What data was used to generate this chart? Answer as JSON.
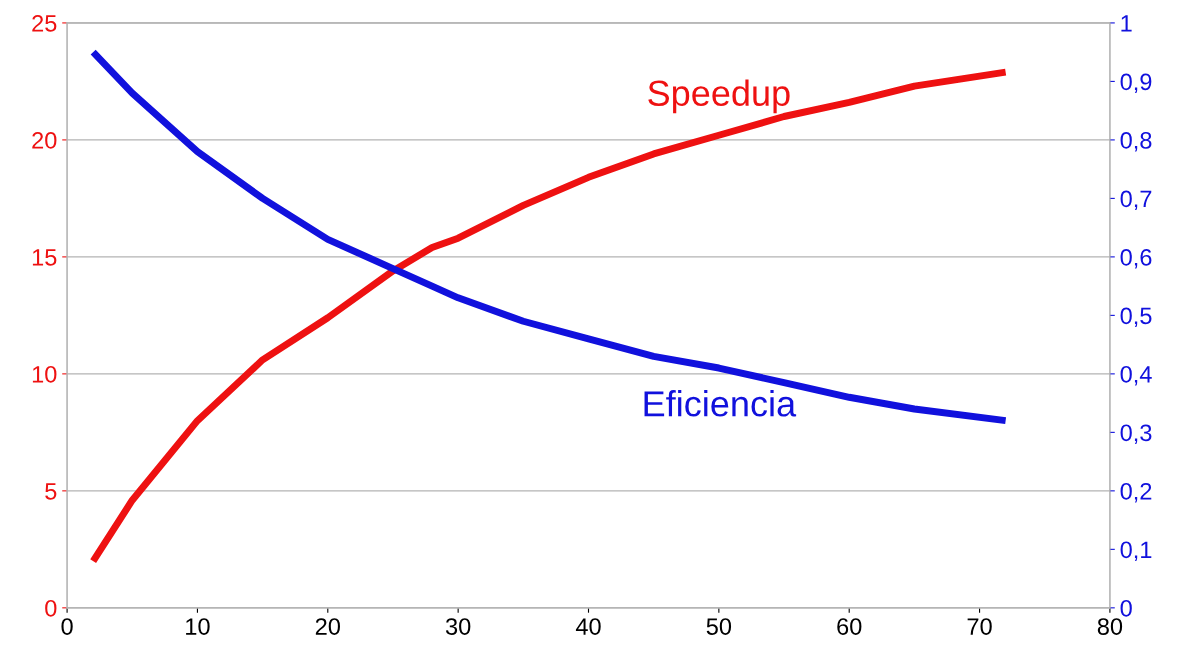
{
  "chart_data": {
    "type": "line",
    "xlim": [
      0,
      80
    ],
    "xticks": [
      0,
      10,
      20,
      30,
      40,
      50,
      60,
      70,
      80
    ],
    "ylim": [
      0,
      25
    ],
    "yticks": [
      0,
      5,
      10,
      15,
      20,
      25
    ],
    "y2lim": [
      0,
      1
    ],
    "y2ticks": [
      0,
      {
        "value": 0.1,
        "label": "0,1"
      },
      {
        "value": 0.2,
        "label": "0,2"
      },
      {
        "value": 0.3,
        "label": "0,3"
      },
      {
        "value": 0.4,
        "label": "0,4"
      },
      {
        "value": 0.5,
        "label": "0,5"
      },
      {
        "value": 0.6,
        "label": "0,6"
      },
      {
        "value": 0.7,
        "label": "0,7"
      },
      {
        "value": 0.8,
        "label": "0,8"
      },
      {
        "value": 0.9,
        "label": "0,9"
      },
      1
    ],
    "grid": "y",
    "legend": false,
    "marker": "none",
    "line_style": "solid",
    "x": [
      2,
      5,
      10,
      15,
      20,
      25,
      28,
      30,
      35,
      40,
      45,
      50,
      55,
      60,
      65,
      72
    ],
    "series": [
      {
        "name": "Speedup",
        "color": "#ee1111",
        "axis": "y",
        "values": [
          2.0,
          4.6,
          8.0,
          10.6,
          12.4,
          14.4,
          15.4,
          15.8,
          17.2,
          18.4,
          19.4,
          20.2,
          21.0,
          21.6,
          22.3,
          22.9
        ]
      },
      {
        "name": "Eficiencia",
        "color": "#1111dd",
        "axis": "y2",
        "values": [
          0.95,
          0.88,
          0.78,
          0.7,
          0.63,
          0.58,
          0.55,
          0.53,
          0.49,
          0.46,
          0.43,
          0.41,
          0.385,
          0.36,
          0.34,
          0.32
        ]
      }
    ]
  }
}
